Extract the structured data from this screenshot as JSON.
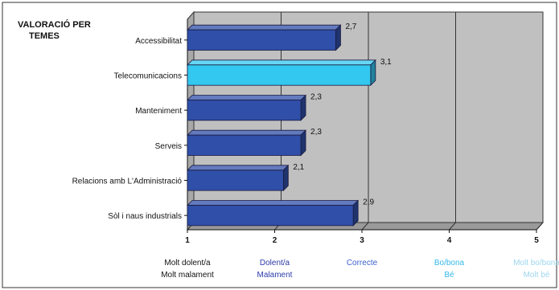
{
  "chart_data": {
    "type": "bar",
    "orientation": "horizontal",
    "style": "3d",
    "title": [
      "VALORACIÓ PER",
      "TEMES"
    ],
    "categories": [
      "Accessibilitat",
      "Telecomunicacions",
      "Manteniment",
      "Serveis",
      "Relacions amb L'Administració",
      "Sòl i naus industrials"
    ],
    "values": [
      2.7,
      3.1,
      2.3,
      2.3,
      2.1,
      2.9
    ],
    "value_labels": [
      "2,7",
      "3,1",
      "2,3",
      "2,3",
      "2,1",
      "2,9"
    ],
    "bar_colors": [
      "#2f4fa8",
      "#33c8f0",
      "#2f4fa8",
      "#2f4fa8",
      "#2f4fa8",
      "#2f4fa8"
    ],
    "xlim": [
      1,
      5
    ],
    "x_ticks": [
      1,
      2,
      3,
      4,
      5
    ],
    "x_tick_labels": [
      {
        "lines": [
          "Molt dolent/a",
          "Molt malament"
        ],
        "color": "#111111"
      },
      {
        "lines": [
          "Dolent/a",
          "Malament"
        ],
        "color": "#2b3aa8"
      },
      {
        "lines": [
          "Correcte"
        ],
        "color": "#3a5fd0"
      },
      {
        "lines": [
          "Bo/bona",
          "Bé"
        ],
        "color": "#33b8e8"
      },
      {
        "lines": [
          "Molt bo/bona",
          "Molt bé"
        ],
        "color": "#9fd6ee"
      }
    ],
    "grid": true,
    "plot_bg": "#c0c0c0"
  }
}
